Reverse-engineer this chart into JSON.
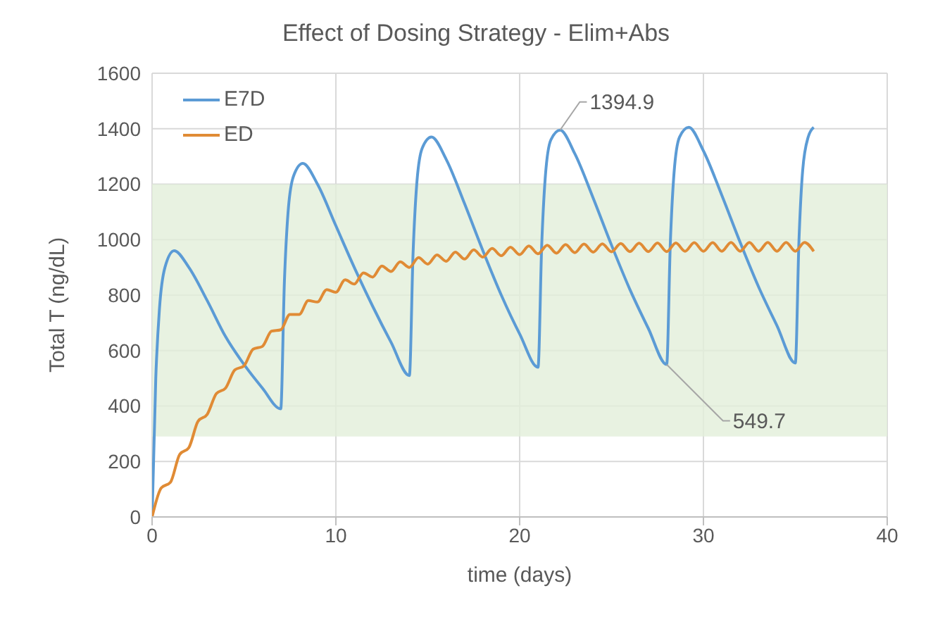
{
  "chart_data": {
    "type": "line",
    "title": "Effect of Dosing Strategy - Elim+Abs",
    "xlabel": "time (days)",
    "ylabel": "Total T (ng/dL)",
    "xlim": [
      0,
      40
    ],
    "xticks": [
      0,
      10,
      20,
      30,
      40
    ],
    "ylim": [
      0,
      1600
    ],
    "yticks": [
      0,
      200,
      400,
      600,
      800,
      1000,
      1200,
      1400,
      1600
    ],
    "grid": true,
    "legend": "top left",
    "marker": "none",
    "line_style": "solid",
    "bands": [
      {
        "axis": "y",
        "from": 290,
        "to": 1200,
        "color": "#e2efd9"
      }
    ],
    "annotations": [
      {
        "text": "1394.9",
        "x": 22.2,
        "y": 1394.9
      },
      {
        "text": "549.7",
        "x": 28,
        "y": 549.7
      }
    ],
    "series": [
      {
        "name": "E7D",
        "color": "#5b9bd5",
        "x": [
          0,
          0.2,
          0.4,
          0.7,
          1.2,
          2,
          3,
          4,
          5,
          6,
          7,
          7.2,
          7.4,
          7.7,
          8.2,
          9,
          10,
          11,
          12,
          13,
          14,
          14.2,
          14.4,
          14.7,
          15.2,
          16,
          17,
          18,
          19,
          20,
          21,
          21.2,
          21.4,
          21.7,
          22.2,
          23,
          24,
          25,
          26,
          27,
          28,
          28.2,
          28.4,
          28.7,
          29.2,
          30,
          31,
          32,
          33,
          34,
          35,
          35.2,
          35.4,
          35.7,
          36
        ],
        "values": [
          0,
          500,
          750,
          900,
          960,
          900,
          780,
          650,
          550,
          465,
          390,
          850,
          1100,
          1230,
          1275,
          1200,
          1050,
          900,
          760,
          630,
          510,
          950,
          1200,
          1330,
          1370,
          1290,
          1130,
          960,
          800,
          660,
          540,
          980,
          1230,
          1360,
          1394.9,
          1310,
          1150,
          980,
          820,
          680,
          549.7,
          990,
          1240,
          1370,
          1405,
          1320,
          1160,
          990,
          830,
          690,
          555,
          1000,
          1250,
          1370,
          1405
        ]
      },
      {
        "name": "ED",
        "color": "#e08b35",
        "x": [
          0,
          0.5,
          1,
          1.5,
          2,
          2.5,
          3,
          3.5,
          4,
          4.5,
          5,
          5.5,
          6,
          6.5,
          7,
          7.5,
          8,
          8.5,
          9,
          9.5,
          10,
          10.5,
          11,
          11.5,
          12,
          12.5,
          13,
          13.5,
          14,
          14.5,
          15,
          15.5,
          16,
          16.5,
          17,
          17.5,
          18,
          18.5,
          19,
          19.5,
          20,
          20.5,
          21,
          21.5,
          22,
          22.5,
          23,
          23.5,
          24,
          24.5,
          25,
          25.5,
          26,
          26.5,
          27,
          27.5,
          28,
          28.5,
          29,
          29.5,
          30,
          30.5,
          31,
          31.5,
          32,
          32.5,
          33,
          33.5,
          34,
          34.5,
          35,
          35.5,
          36
        ],
        "values": [
          0,
          105,
          125,
          225,
          250,
          345,
          370,
          445,
          465,
          530,
          545,
          605,
          615,
          670,
          675,
          730,
          730,
          780,
          775,
          820,
          810,
          855,
          840,
          880,
          865,
          905,
          885,
          920,
          900,
          935,
          912,
          945,
          922,
          955,
          930,
          963,
          937,
          968,
          942,
          973,
          946,
          977,
          949,
          980,
          951,
          982,
          953,
          984,
          955,
          985,
          956,
          986,
          957,
          987,
          957,
          988,
          957,
          988,
          958,
          989,
          958,
          989,
          958,
          990,
          958,
          990,
          958,
          990,
          958,
          990,
          958,
          990,
          958
        ]
      }
    ]
  }
}
